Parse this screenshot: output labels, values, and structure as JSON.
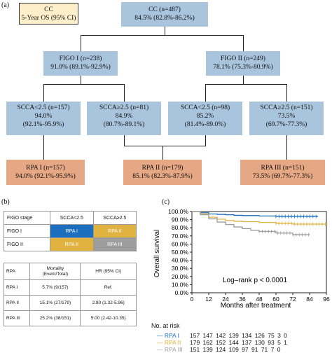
{
  "panel_a": {
    "label": "(a)",
    "legend": {
      "line1": "CC",
      "line2": "5-Year OS (95% CI)"
    },
    "root": {
      "line1": "CC (n=487)",
      "line2": "84.5% (82.8%-86.2%)"
    },
    "figo1": {
      "line1": "FIGO I (n=238)",
      "line2": "91.0% (89.1%-92.9%)"
    },
    "figo2": {
      "line1": "FIGO II (n=249)",
      "line2": "78.1% (75.3%-80.9%)"
    },
    "l1": {
      "line1": "SCCA<2.5 (n=157)",
      "line2": "94.0%",
      "line3": "(92.1%-95.9%)"
    },
    "l2": {
      "line1": "SCCA≥2.5 (n=81)",
      "line2": "84.9%",
      "line3": "(80.7%-89.1%)"
    },
    "l3": {
      "line1": "SCCA<2.5 (n=98)",
      "line2": "85.2%",
      "line3": "(81.4%-89.0%)"
    },
    "l4": {
      "line1": "SCCA≥2.5 (n=151)",
      "line2": "73.5%",
      "line3": "(69.7%-77.3%)"
    },
    "rpa1": {
      "line1": "RPA I (n=157)",
      "line2": "94.0% (92.1%-95.9%)"
    },
    "rpa2": {
      "line1": "RPA II (n=179)",
      "line2": "85.1% (82.3%-87.9%)"
    },
    "rpa3": {
      "line1": "RPA III (n=151)",
      "line2": "73.5% (69.7%-77.3%)"
    }
  },
  "panel_b": {
    "label": "(b)",
    "table1": {
      "header": [
        "FIGO stage",
        "SCCA<2.5",
        "SCCA≥2.5"
      ],
      "rows": [
        [
          "FIGO I",
          "RPA I",
          "RPA II"
        ],
        [
          "FIGO II",
          "RPA II",
          "RPA III"
        ]
      ]
    },
    "table2": {
      "header": [
        "RPA",
        "Mortality\n(Event/Total)",
        "HR (95% CI)"
      ],
      "rows": [
        [
          "RPA I",
          "5.7% (9/157)",
          "Ref."
        ],
        [
          "RPA II",
          "15.1% (27/179)",
          "2.80 (1.32-5.96)"
        ],
        [
          "RPA III",
          "25.2% (38/151)",
          "5.00 (2.42-10.35)"
        ]
      ]
    }
  },
  "panel_c": {
    "label": "(c)",
    "annotation": "Log–rank p < 0.0001",
    "risk_title": "No. at risk",
    "risk_rows": [
      {
        "name": "RPA I",
        "counts": "157 147 142 139 134 126 75 3 0"
      },
      {
        "name": "RPA II",
        "counts": "179 162 152 144 137 130 93 5 1"
      },
      {
        "name": "RPA III",
        "counts": "151 139 124 109 97 91 71 7 0"
      }
    ]
  },
  "colors": {
    "rpa1": "#1a6ebd",
    "rpa2": "#e0b240",
    "rpa3": "#9d9d9d"
  },
  "chart_data": {
    "type": "line",
    "xlabel": "Months after treatment",
    "ylabel": "Overall survival",
    "xticks": [
      0,
      12,
      24,
      36,
      48,
      60,
      72,
      84,
      96
    ],
    "yticks": [
      "0.0%",
      "10.0%",
      "20.0%",
      "30.0%",
      "40.0%",
      "50.0%",
      "60.0%",
      "70.0%",
      "80.0%",
      "90.0%",
      "100.0%"
    ],
    "xlim": [
      0,
      96
    ],
    "ylim": [
      0,
      100
    ],
    "series": [
      {
        "name": "RPA I",
        "color": "#1a6ebd",
        "x": [
          0,
          6,
          12,
          18,
          24,
          30,
          36,
          48,
          60,
          72,
          84,
          90
        ],
        "y": [
          100,
          98.5,
          97,
          96.5,
          96,
          95.3,
          95,
          94.5,
          94,
          94,
          94,
          94
        ]
      },
      {
        "name": "RPA II",
        "color": "#e0b240",
        "x": [
          0,
          6,
          12,
          18,
          24,
          30,
          36,
          48,
          60,
          72,
          84,
          96
        ],
        "y": [
          100,
          97,
          93,
          90.5,
          89,
          88,
          87.5,
          86.5,
          85.5,
          84.5,
          84.5,
          84.5
        ]
      },
      {
        "name": "RPA III",
        "color": "#9d9d9d",
        "x": [
          0,
          6,
          12,
          18,
          24,
          30,
          36,
          42,
          48,
          60,
          72,
          84
        ],
        "y": [
          100,
          96,
          91,
          87,
          84,
          81,
          79,
          77,
          75.5,
          73.5,
          71.5,
          71
        ]
      }
    ]
  }
}
